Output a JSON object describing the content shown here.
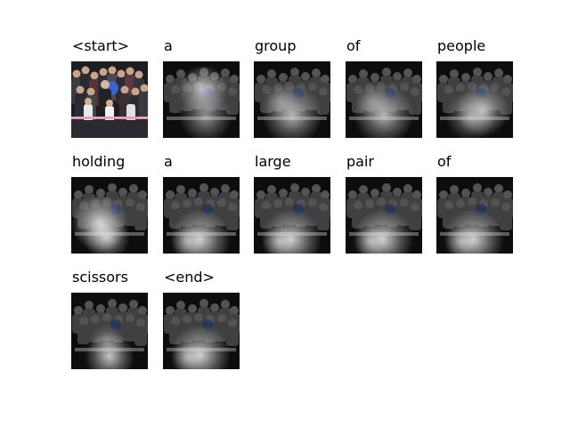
{
  "figure": {
    "tokens": [
      {
        "word": "<start>",
        "kind": "original"
      },
      {
        "word": "a",
        "kind": "attention",
        "focus": "upper-center"
      },
      {
        "word": "group",
        "kind": "attention",
        "focus": "lower"
      },
      {
        "word": "of",
        "kind": "attention",
        "focus": "lower"
      },
      {
        "word": "people",
        "kind": "attention",
        "focus": "lower-right"
      },
      {
        "word": "holding",
        "kind": "attention",
        "focus": "lower-left"
      },
      {
        "word": "a",
        "kind": "attention",
        "focus": "bottom"
      },
      {
        "word": "large",
        "kind": "attention",
        "focus": "bottom"
      },
      {
        "word": "pair",
        "kind": "attention",
        "focus": "bottom"
      },
      {
        "word": "of",
        "kind": "attention",
        "focus": "bottom"
      },
      {
        "word": "scissors",
        "kind": "attention",
        "focus": "bottom-center"
      },
      {
        "word": "<end>",
        "kind": "attention",
        "focus": "bottom"
      }
    ],
    "colors": {
      "background": "#ffffff",
      "highlight": "#ffffff",
      "accent_blue": "#3a66c8",
      "ribbon_pink": "#e8a0b8"
    }
  }
}
